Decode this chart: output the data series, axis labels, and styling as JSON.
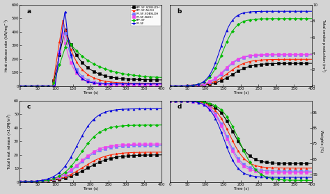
{
  "legend_labels": [
    "SPF-SF-SDBSLDH",
    "SPF-SF-NLDH",
    "PF-SF-SDBSLDH",
    "PF-SF-NLDH",
    "SPF-SF",
    "PF-SF"
  ],
  "colors": [
    "#000000",
    "#ff2200",
    "#7777ff",
    "#ee44ee",
    "#00bb00",
    "#0000dd"
  ],
  "markers": [
    "s",
    "^",
    "s",
    "s",
    "D",
    "^"
  ],
  "background_color": "#d4d4d4",
  "t_max": 400
}
